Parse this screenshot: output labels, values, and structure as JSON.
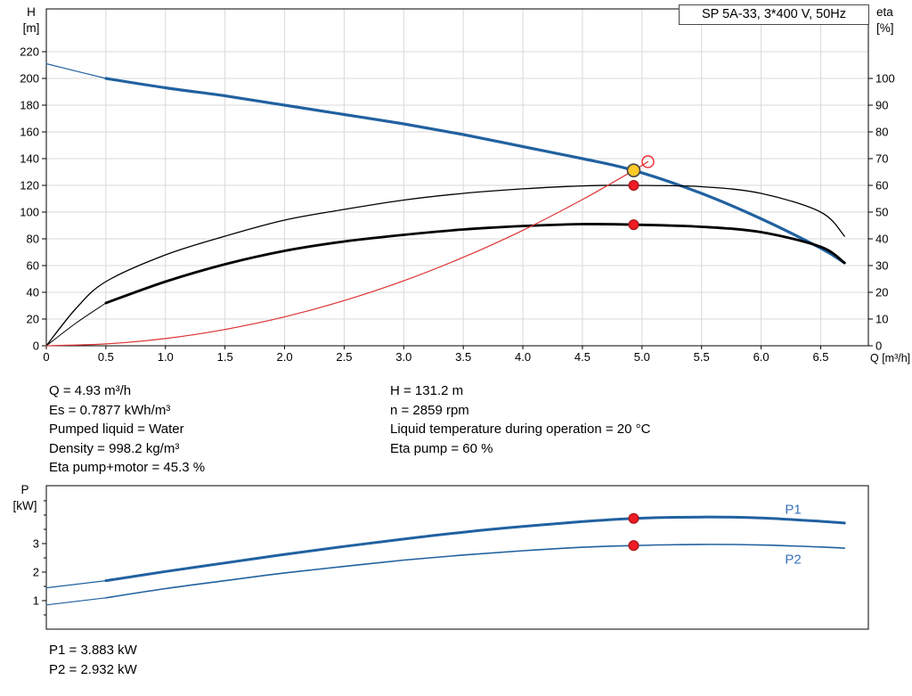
{
  "title_box": "SP 5A-33, 3*400 V, 50Hz",
  "axes": {
    "h_label": "H",
    "h_unit": "[m]",
    "eta_label": "eta",
    "eta_unit": "[%]",
    "q_label": "Q [m³/h]",
    "p_label": "P",
    "p_unit": "[kW]"
  },
  "info": {
    "left": [
      "Q = 4.93 m³/h",
      "Es = 0.7877 kWh/m³",
      "Pumped liquid = Water",
      "Density = 998.2 kg/m³",
      "Eta pump+motor = 45.3 %"
    ],
    "right": [
      "H = 131.2 m",
      "n = 2859 rpm",
      "Liquid temperature during operation = 20 °C",
      "Eta pump = 60 %"
    ],
    "power": [
      "P1 = 3.883 kW",
      "P2 = 2.932 kW"
    ]
  },
  "colors": {
    "blue": "#2161a0",
    "label_blue": "#3672b9",
    "red": "#dd3333",
    "red_dot": "#ee1c25",
    "red_dot_edge": "#991111",
    "yellow": "#ffc928",
    "yellow_edge": "#444444",
    "grid": "#d9d9d9",
    "axis": "#000000"
  },
  "chart_data": [
    {
      "type": "line",
      "title": "SP 5A-33, 3*400 V, 50Hz",
      "xlabel": "Q [m³/h]",
      "ylabel_left": "H [m]",
      "ylabel_right": "eta [%]",
      "xlim": [
        0,
        6.9
      ],
      "ylim_left": [
        0,
        252
      ],
      "ylim_right": [
        0,
        126
      ],
      "grid": true,
      "legend": "none",
      "x_ticks": [
        0,
        0.5,
        1,
        1.5,
        2,
        2.5,
        3,
        3.5,
        4,
        4.5,
        5,
        5.5,
        6,
        6.5
      ],
      "x_tick_labels": [
        "0",
        "0.5",
        "1.0",
        "1.5",
        "2.0",
        "2.5",
        "3.0",
        "3.5",
        "4.0",
        "4.5",
        "5.0",
        "5.5",
        "6.0",
        "6.5"
      ],
      "y_ticks_left": [
        0,
        20,
        40,
        60,
        80,
        100,
        120,
        140,
        160,
        180,
        200,
        220
      ],
      "y_ticks_right": [
        0,
        10,
        20,
        30,
        40,
        50,
        60,
        70,
        80,
        90,
        100
      ],
      "series": [
        {
          "name": "h-curve-lead",
          "axis": "left",
          "color": "blue",
          "width": 1.2,
          "x": [
            0,
            0.25,
            0.5
          ],
          "y": [
            211,
            205.5,
            200
          ]
        },
        {
          "name": "h-curve",
          "axis": "left",
          "color": "blue",
          "width": 3.2,
          "x": [
            0.5,
            1,
            1.5,
            2,
            2.5,
            3,
            3.5,
            4,
            4.5,
            4.93,
            5.5,
            6,
            6.5,
            6.7
          ],
          "y": [
            200,
            193,
            187,
            180,
            173,
            166,
            158,
            149,
            140,
            131.2,
            114,
            95,
            73,
            62
          ]
        },
        {
          "name": "eta-pump-curve",
          "axis": "right",
          "color": "black",
          "width": 1.3,
          "x": [
            0,
            0.25,
            0.5,
            1,
            1.5,
            2,
            2.5,
            3,
            3.5,
            4,
            4.5,
            4.93,
            5.5,
            6,
            6.5,
            6.7
          ],
          "y": [
            0,
            14,
            24,
            34,
            41,
            47,
            51,
            54.5,
            57,
            58.7,
            59.8,
            60,
            59.5,
            57,
            50,
            41
          ]
        },
        {
          "name": "eta-pump-motor-lead",
          "axis": "right",
          "color": "black",
          "width": 1,
          "x": [
            0,
            0.25,
            0.5
          ],
          "y": [
            0,
            8.5,
            16
          ]
        },
        {
          "name": "eta-pump-motor-curve",
          "axis": "right",
          "color": "black",
          "width": 2.8,
          "x": [
            0.5,
            1,
            1.5,
            2,
            2.5,
            3,
            3.5,
            4,
            4.5,
            4.93,
            5.5,
            6,
            6.5,
            6.7
          ],
          "y": [
            16,
            24,
            30.5,
            35.5,
            39,
            41.5,
            43.5,
            44.8,
            45.5,
            45.3,
            44.5,
            42.5,
            37,
            31
          ]
        },
        {
          "name": "system-curve",
          "axis": "left",
          "color": "red",
          "width": 1.2,
          "x": [
            0,
            0.5,
            1,
            1.5,
            2,
            2.5,
            3,
            3.5,
            4,
            4.5,
            4.93,
            5.05
          ],
          "y": [
            0,
            1.4,
            5.4,
            12.2,
            21.6,
            33.8,
            48.6,
            66.2,
            86.4,
            109.4,
            131.2,
            137.7
          ]
        }
      ],
      "points": [
        {
          "name": "system-curve-end-marker",
          "x": 5.05,
          "y": 137.7,
          "axis": "left",
          "style": "open-red"
        },
        {
          "name": "duty-point",
          "x": 4.93,
          "y": 131.2,
          "axis": "left",
          "style": "duty-yellow"
        },
        {
          "name": "eta-pump-point",
          "x": 4.93,
          "y": 60,
          "axis": "right",
          "style": "red-dot"
        },
        {
          "name": "eta-pump-motor-point",
          "x": 4.93,
          "y": 45.3,
          "axis": "right",
          "style": "red-dot"
        }
      ],
      "labels": []
    },
    {
      "type": "line",
      "title": "",
      "xlabel": "",
      "ylabel_left": "P [kW]",
      "xlim": [
        0,
        6.9
      ],
      "ylim_left": [
        0,
        5.03
      ],
      "grid": false,
      "x_ticks": [],
      "x_tick_labels": [],
      "y_ticks_left": [
        1,
        2,
        3
      ],
      "y_minor_left": [
        0.5,
        1.5,
        2.5,
        3.5,
        4,
        4.5
      ],
      "series": [
        {
          "name": "p1-curve-lead",
          "axis": "left",
          "color": "blue",
          "width": 1.2,
          "x": [
            0,
            0.5
          ],
          "y": [
            1.45,
            1.7
          ]
        },
        {
          "name": "p1-curve",
          "axis": "left",
          "color": "blue",
          "width": 3,
          "x": [
            0.5,
            1,
            1.5,
            2,
            2.5,
            3,
            3.5,
            4,
            4.5,
            4.93,
            5.5,
            6,
            6.5,
            6.7
          ],
          "y": [
            1.7,
            2.02,
            2.32,
            2.62,
            2.9,
            3.16,
            3.4,
            3.6,
            3.77,
            3.883,
            3.93,
            3.9,
            3.78,
            3.72
          ]
        },
        {
          "name": "p2-curve-lead",
          "axis": "left",
          "color": "blue",
          "width": 1.2,
          "x": [
            0,
            0.5
          ],
          "y": [
            0.85,
            1.1
          ]
        },
        {
          "name": "p2-curve",
          "axis": "left",
          "color": "blue",
          "width": 1.6,
          "x": [
            0.5,
            1,
            1.5,
            2,
            2.5,
            3,
            3.5,
            4,
            4.5,
            4.93,
            5.5,
            6,
            6.5,
            6.7
          ],
          "y": [
            1.1,
            1.42,
            1.7,
            1.97,
            2.2,
            2.42,
            2.6,
            2.75,
            2.87,
            2.932,
            2.97,
            2.95,
            2.88,
            2.84
          ]
        }
      ],
      "points": [
        {
          "name": "p1-point",
          "x": 4.93,
          "y": 3.883,
          "axis": "left",
          "style": "red-dot"
        },
        {
          "name": "p2-point",
          "x": 4.93,
          "y": 2.932,
          "axis": "left",
          "style": "red-dot"
        }
      ],
      "labels": [
        {
          "name": "p1",
          "text": "P1",
          "x": 6.2,
          "y": 4.05
        },
        {
          "name": "p2",
          "text": "P2",
          "x": 6.2,
          "y": 2.3
        }
      ]
    }
  ]
}
